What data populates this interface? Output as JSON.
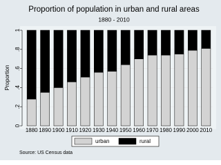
{
  "chart_data": {
    "type": "stacked-bar",
    "title": "Proportion of population in urban and rural areas",
    "subtitle": "1880 - 2010",
    "y_label": "Proportion",
    "source": "Source: US Census data",
    "categories": [
      "1880",
      "1890",
      "1900",
      "1910",
      "1920",
      "1930",
      "1940",
      "1950",
      "1960",
      "1970",
      "1980",
      "1990",
      "2000",
      "2010"
    ],
    "series": [
      {
        "name": "urban",
        "color": "#d3d3d3",
        "values": [
          0.28,
          0.35,
          0.4,
          0.46,
          0.51,
          0.56,
          0.57,
          0.64,
          0.7,
          0.74,
          0.74,
          0.75,
          0.79,
          0.81
        ]
      },
      {
        "name": "rural",
        "color": "#000000",
        "values": [
          0.72,
          0.65,
          0.6,
          0.54,
          0.49,
          0.44,
          0.43,
          0.36,
          0.3,
          0.26,
          0.26,
          0.25,
          0.21,
          0.19
        ]
      }
    ],
    "ylim": [
      0,
      1
    ],
    "yticks": [
      0,
      {
        "value": 0.2,
        "label": ".2"
      },
      {
        "value": 0.4,
        "label": ".4"
      },
      {
        "value": 0.6,
        "label": ".6"
      },
      {
        "value": 0.8,
        "label": ".8"
      },
      1
    ],
    "grid": true
  }
}
